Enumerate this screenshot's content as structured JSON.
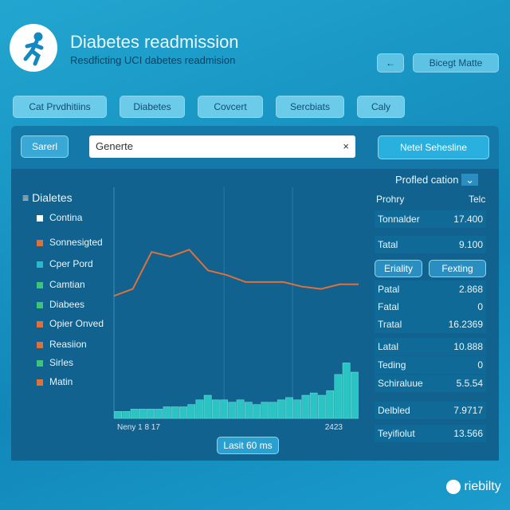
{
  "header": {
    "title": "Diabetes readmission",
    "subtitle": "Resdficting UCI dabetes readmision",
    "action": "Bicegt Matte"
  },
  "tabs": [
    "Cat Prvdhitiins",
    "Diabetes",
    "Covcert",
    "Sercbiats",
    "Caly"
  ],
  "filter": {
    "select": "Sarerl",
    "search": "Generte",
    "button": "Netel Sehesline"
  },
  "legend": {
    "title": "Dialetes",
    "items": [
      {
        "label": "Contina",
        "color": "#ffffff"
      },
      {
        "label": "Sonnesigted",
        "color": "#e0703a"
      },
      {
        "label": "Cper Pord",
        "color": "#2bb8c8"
      },
      {
        "label": "Camtian",
        "color": "#3cc47a"
      },
      {
        "label": "Diabees",
        "color": "#3cc47a"
      },
      {
        "label": "Opier Onved",
        "color": "#e0703a"
      },
      {
        "label": "Reasiion",
        "color": "#e0703a"
      },
      {
        "label": "Sirles",
        "color": "#3cc47a"
      },
      {
        "label": "Matin",
        "color": "#e0703a"
      }
    ]
  },
  "chart_data": {
    "type": "line-bar",
    "x_labels": [
      "Neny 1 8 17",
      "2423"
    ],
    "ylim": [
      0,
      100
    ],
    "line": {
      "color": "#e0703a",
      "values": [
        53,
        56,
        72,
        70,
        73,
        64,
        62,
        59,
        59,
        59,
        57,
        56,
        58,
        58
      ]
    },
    "bars": {
      "color": "#2bc4c4",
      "values": [
        3,
        3,
        4,
        4,
        4,
        4,
        5,
        5,
        5,
        6,
        8,
        10,
        8,
        8,
        7,
        8,
        7,
        6,
        7,
        7,
        8,
        9,
        8,
        10,
        11,
        10,
        12,
        19,
        24,
        20
      ]
    }
  },
  "chart_button": "Lasit 60 ms",
  "panel": {
    "dropdown": "Profled cation",
    "head": [
      "Prohry",
      "Telc"
    ],
    "rows_top": [
      [
        "Tonnalder",
        "17.400"
      ],
      [
        "Tatal",
        "9.100"
      ]
    ],
    "buttons": [
      "Eriality",
      "Fexting"
    ],
    "rows_mid": [
      [
        "Patal",
        "2.868"
      ],
      [
        "Fatal",
        "0"
      ],
      [
        "Tratal",
        "16.2369"
      ],
      [
        "Latal",
        "10.888"
      ],
      [
        "Teding",
        "0"
      ],
      [
        "Schiraluue",
        "5.5.54"
      ]
    ],
    "rows_bot": [
      [
        "Delbled",
        "7.9717"
      ],
      [
        "Teyifiolut",
        "13.566"
      ]
    ]
  },
  "footer": {
    "brand": "riebilty"
  }
}
